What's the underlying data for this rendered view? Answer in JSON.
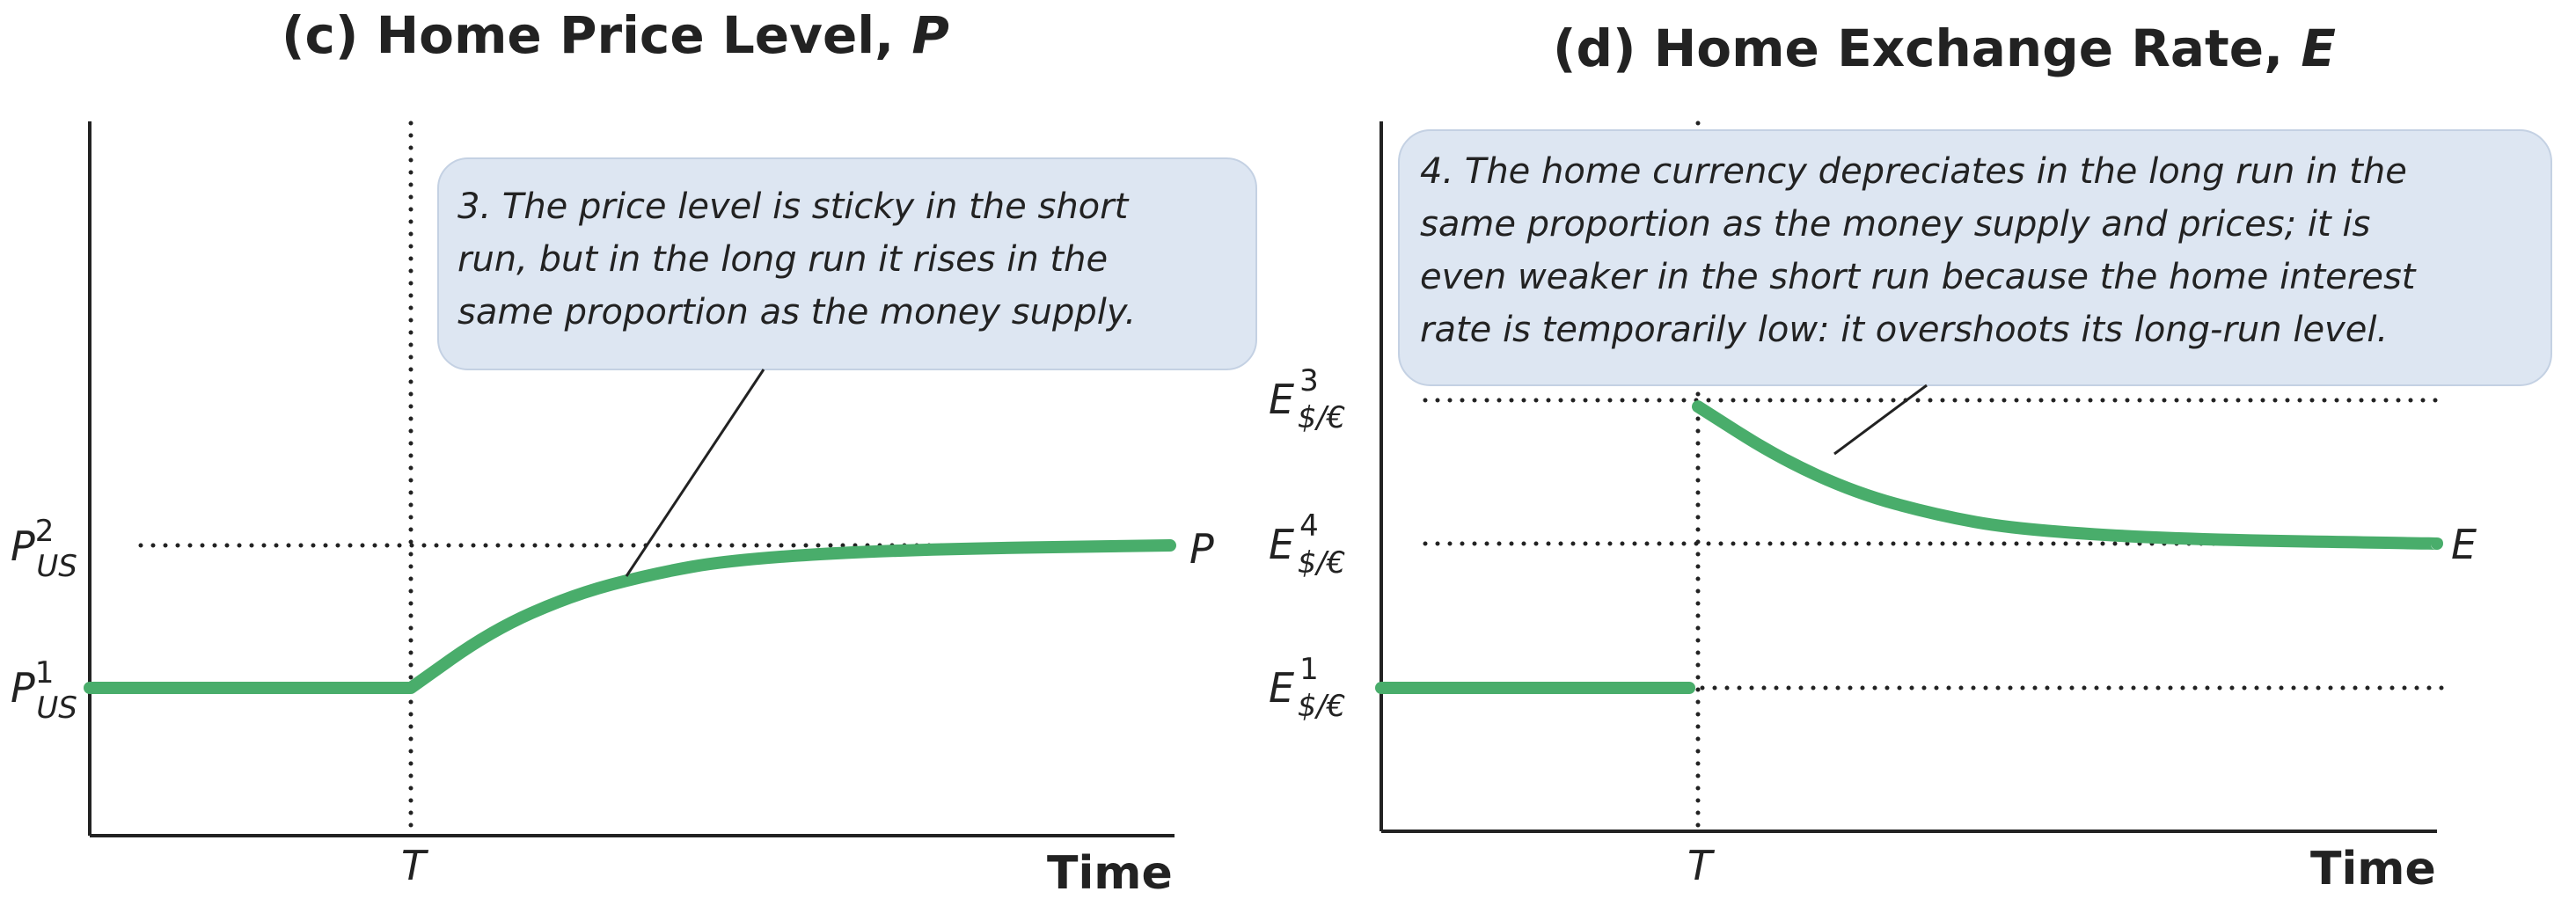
{
  "chart_data": [
    {
      "type": "line",
      "title": "(c) Home Price Level, P",
      "title_main": "(c) Home Price Level, ",
      "title_var": "P",
      "xlabel": "Time",
      "x_ticks": [
        {
          "label": "T",
          "value": 0
        }
      ],
      "y_ticks": [
        {
          "base": "P",
          "sup": "1",
          "sub": "US",
          "value": 1
        },
        {
          "base": "P",
          "sup": "2",
          "sub": "US",
          "value": 2
        }
      ],
      "xlim": [
        -1,
        2.5
      ],
      "ylim": [
        0,
        3
      ],
      "series": [
        {
          "name": "P",
          "points": [
            [
              -1,
              1
            ],
            [
              0,
              1
            ],
            [
              0.25,
              1.4
            ],
            [
              0.5,
              1.65
            ],
            [
              0.75,
              1.8
            ],
            [
              1.0,
              1.9
            ],
            [
              1.5,
              1.97
            ],
            [
              2.5,
              2
            ]
          ]
        }
      ],
      "annotation": {
        "lines": [
          "3. The price level is sticky in the short",
          "run, but in the long run it rises in the",
          "same proportion as the money supply."
        ]
      }
    },
    {
      "type": "line",
      "title": "(d) Home Exchange Rate, E",
      "title_main": "(d) Home Exchange Rate, ",
      "title_var": "E",
      "xlabel": "Time",
      "x_ticks": [
        {
          "label": "T",
          "value": 0
        }
      ],
      "y_ticks": [
        {
          "base": "E",
          "sup": "1",
          "sub": "$/€",
          "value": 1
        },
        {
          "base": "E",
          "sup": "4",
          "sub": "$/€",
          "value": 2
        },
        {
          "base": "E",
          "sup": "3",
          "sub": "$/€",
          "value": 3
        }
      ],
      "xlim": [
        -1,
        2.5
      ],
      "ylim": [
        0,
        4
      ],
      "series": [
        {
          "name": "E",
          "points": [
            [
              -1,
              1
            ],
            [
              0,
              1
            ]
          ]
        },
        {
          "name": "E",
          "points": [
            [
              0,
              2.95
            ],
            [
              0.25,
              2.6
            ],
            [
              0.5,
              2.35
            ],
            [
              0.75,
              2.2
            ],
            [
              1.0,
              2.1
            ],
            [
              1.5,
              2.03
            ],
            [
              2.5,
              2
            ]
          ]
        }
      ],
      "annotation": {
        "lines": [
          "4. The home currency depreciates in the long run in the",
          "same proportion as the money supply and prices; it is",
          "even weaker in the short run because the home interest",
          "rate is temporarily low: it overshoots its long-run level."
        ]
      }
    }
  ]
}
